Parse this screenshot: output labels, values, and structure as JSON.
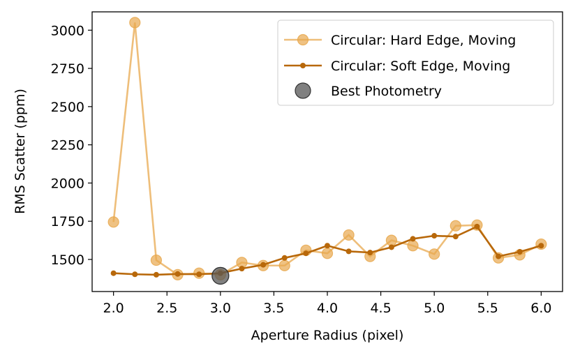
{
  "chart_data": {
    "type": "line",
    "xlabel": "Aperture Radius (pixel)",
    "ylabel": "RMS Scatter (ppm)",
    "xlim": [
      1.8,
      6.2
    ],
    "ylim": [
      1290,
      3120
    ],
    "xticks": [
      2.0,
      2.5,
      3.0,
      3.5,
      4.0,
      4.5,
      5.0,
      5.5,
      6.0
    ],
    "xtick_labels": [
      "2.0",
      "2.5",
      "3.0",
      "3.5",
      "4.0",
      "4.5",
      "5.0",
      "5.5",
      "6.0"
    ],
    "yticks": [
      1500,
      1750,
      2000,
      2250,
      2500,
      2750,
      3000
    ],
    "ytick_labels": [
      "1500",
      "1750",
      "2000",
      "2250",
      "2500",
      "2750",
      "3000"
    ],
    "grid": false,
    "legend_position": "top-right",
    "series": [
      {
        "name": "Circular: Hard Edge, Moving",
        "color": "#e8a84e",
        "marker": "circle-large",
        "x": [
          2.0,
          2.2,
          2.4,
          2.6,
          2.8,
          3.0,
          3.2,
          3.4,
          3.6,
          3.8,
          4.0,
          4.2,
          4.4,
          4.6,
          4.8,
          5.0,
          5.2,
          5.4,
          5.6,
          5.8,
          6.0
        ],
        "y": [
          1745,
          3050,
          1495,
          1400,
          1410,
          1400,
          1480,
          1460,
          1460,
          1560,
          1540,
          1660,
          1520,
          1625,
          1590,
          1535,
          1720,
          1725,
          1510,
          1530,
          1600
        ]
      },
      {
        "name": "Circular: Soft Edge, Moving",
        "color": "#b8680a",
        "marker": "circle-small",
        "x": [
          2.0,
          2.2,
          2.4,
          2.6,
          2.8,
          3.0,
          3.2,
          3.4,
          3.6,
          3.8,
          4.0,
          4.2,
          4.4,
          4.6,
          4.8,
          5.0,
          5.2,
          5.4,
          5.6,
          5.8,
          6.0
        ],
        "y": [
          1410,
          1403,
          1400,
          1405,
          1403,
          1410,
          1440,
          1465,
          1510,
          1540,
          1590,
          1553,
          1545,
          1580,
          1635,
          1655,
          1650,
          1715,
          1520,
          1550,
          1590
        ]
      },
      {
        "name": "Best Photometry",
        "color": "#555555",
        "marker": "circle-best",
        "x": [
          3.0
        ],
        "y": [
          1393
        ]
      }
    ]
  }
}
